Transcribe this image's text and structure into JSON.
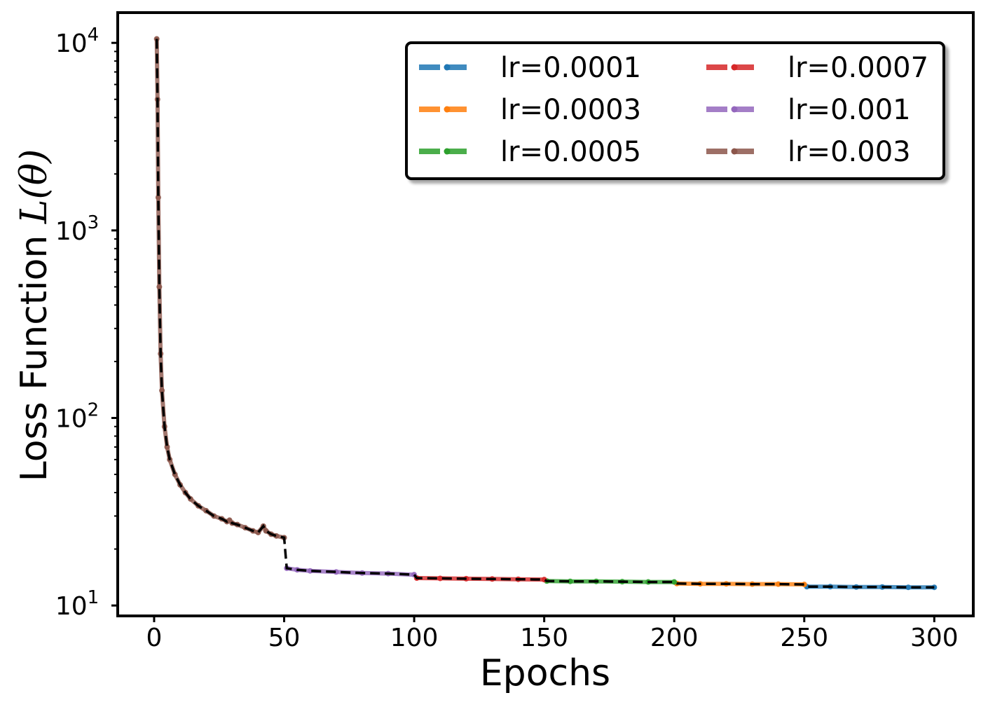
{
  "chart_data": {
    "type": "line",
    "title": "",
    "xlabel": "Epochs",
    "ylabel_text": "Loss Function",
    "ylabel_symbol": "L",
    "ylabel_arg": "(θ)",
    "xlim": [
      -14,
      315
    ],
    "ylim": [
      8.8,
      14500
    ],
    "yscale": "log",
    "grid": false,
    "legend_position": "top-right",
    "legend_columns": 2,
    "x_ticks": [
      0,
      50,
      100,
      150,
      200,
      250,
      300
    ],
    "x_tick_labels": [
      "0",
      "50",
      "100",
      "150",
      "200",
      "250",
      "300"
    ],
    "y_ticks": [
      {
        "value": 10,
        "base": "10",
        "exp": "1"
      },
      {
        "value": 100,
        "base": "10",
        "exp": "2"
      },
      {
        "value": 1000,
        "base": "10",
        "exp": "3"
      },
      {
        "value": 10000,
        "base": "10",
        "exp": "4"
      }
    ],
    "series": [
      {
        "name": "lr=0.0001",
        "color": "#1f77b4",
        "x": [
          251,
          260,
          270,
          280,
          290,
          300
        ],
        "y": [
          12.6,
          12.6,
          12.55,
          12.55,
          12.5,
          12.5
        ]
      },
      {
        "name": "lr=0.0003",
        "color": "#ff7f0e",
        "x": [
          201,
          210,
          220,
          230,
          240,
          250
        ],
        "y": [
          13.1,
          13.05,
          13.05,
          13.0,
          13.0,
          12.95
        ]
      },
      {
        "name": "lr=0.0005",
        "color": "#2ca02c",
        "x": [
          151,
          160,
          170,
          180,
          190,
          200
        ],
        "y": [
          13.5,
          13.45,
          13.45,
          13.4,
          13.35,
          13.35
        ]
      },
      {
        "name": "lr=0.0007",
        "color": "#d62728",
        "x": [
          101,
          110,
          120,
          130,
          140,
          150
        ],
        "y": [
          14.0,
          13.95,
          13.9,
          13.85,
          13.8,
          13.75
        ]
      },
      {
        "name": "lr=0.001",
        "color": "#9467bd",
        "x": [
          51,
          55,
          60,
          70,
          80,
          90,
          100
        ],
        "y": [
          15.8,
          15.5,
          15.3,
          15.1,
          14.9,
          14.8,
          14.6
        ]
      },
      {
        "name": "lr=0.003",
        "color": "#8c564b",
        "x": [
          1,
          1.3,
          1.6,
          2,
          2.5,
          3,
          4,
          5,
          6,
          8,
          10,
          12,
          14,
          17,
          20,
          23,
          26,
          28,
          29,
          30,
          32,
          35,
          38,
          40,
          42,
          43,
          45,
          47,
          50
        ],
        "y": [
          10500,
          5000,
          1500,
          500,
          220,
          140,
          90,
          70,
          60,
          50,
          44,
          40,
          37,
          34,
          32,
          30,
          29,
          28,
          28.5,
          27.5,
          27,
          26,
          25,
          24.5,
          26.5,
          25,
          24,
          23.5,
          23
        ]
      }
    ]
  }
}
